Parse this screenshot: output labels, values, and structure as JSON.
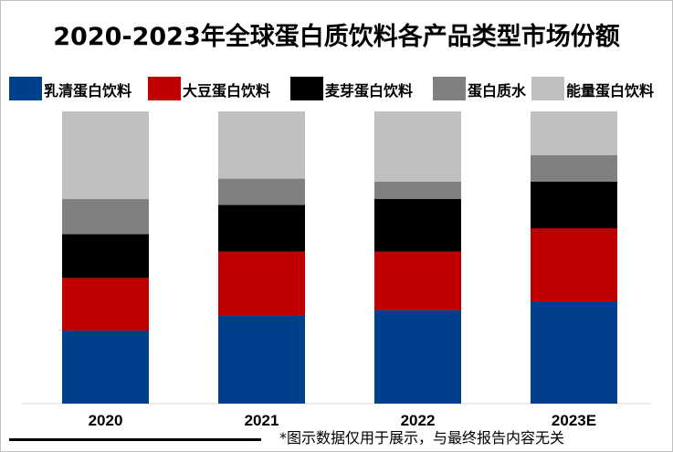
{
  "chart_data": {
    "type": "bar",
    "stacked": true,
    "normalized": true,
    "title": "2020-2023年全球蛋白质饮料各产品类型市场份额",
    "categories": [
      "2020",
      "2021",
      "2022",
      "2023E"
    ],
    "series": [
      {
        "name": "乳清蛋白饮料",
        "color": "#003f8a",
        "values": [
          0.25,
          0.3,
          0.32,
          0.35
        ]
      },
      {
        "name": "大豆蛋白饮料",
        "color": "#c00000",
        "values": [
          0.18,
          0.22,
          0.2,
          0.25
        ]
      },
      {
        "name": "麦芽蛋白饮料",
        "color": "#000000",
        "values": [
          0.15,
          0.16,
          0.18,
          0.16
        ]
      },
      {
        "name": "蛋白质水",
        "color": "#808080",
        "values": [
          0.12,
          0.09,
          0.06,
          0.09
        ]
      },
      {
        "name": "能量蛋白饮料",
        "color": "#c0c0c0",
        "values": [
          0.3,
          0.23,
          0.24,
          0.15
        ]
      }
    ],
    "ylim": [
      0,
      1
    ],
    "grid": false,
    "legend": "top"
  },
  "footnote": "*图示数据仅用于展示，与最终报告内容无关"
}
